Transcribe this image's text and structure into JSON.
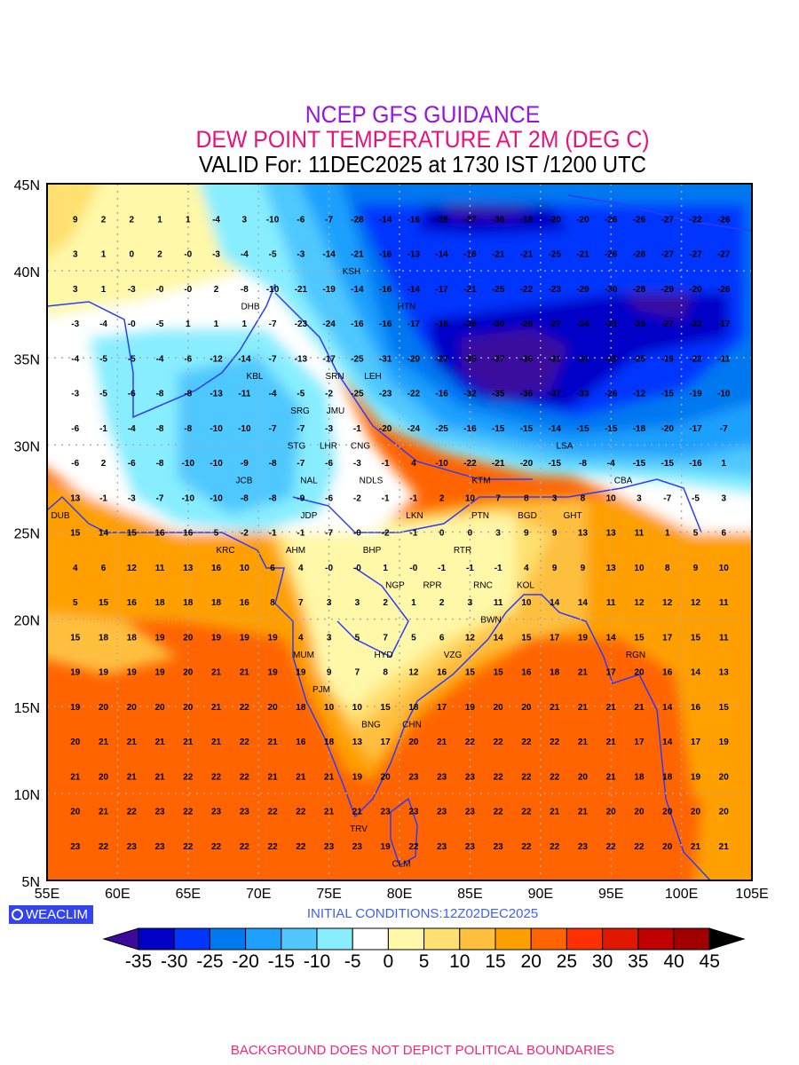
{
  "header": {
    "line1": "NCEP GFS GUIDANCE",
    "line2": "DEW POINT TEMPERATURE AT 2M (DEG C)",
    "line3": "VALID For: 11DEC2025 at 1730 IST /1200 UTC"
  },
  "axes": {
    "lat_labels": [
      "45N",
      "40N",
      "35N",
      "30N",
      "25N",
      "20N",
      "15N",
      "10N",
      "5N"
    ],
    "lon_labels": [
      "55E",
      "60E",
      "65E",
      "70E",
      "75E",
      "80E",
      "85E",
      "90E",
      "95E",
      "100E",
      "105E"
    ]
  },
  "brand": {
    "label": "WEACLIM"
  },
  "initial_conditions": "INITIAL CONDITIONS:12Z02DEC2025",
  "footer": "BACKGROUND DOES NOT DEPICT POLITICAL BOUNDARIES",
  "legend": {
    "labels": [
      "-35",
      "-30",
      "-25",
      "-20",
      "-15",
      "-10",
      "-5",
      "0",
      "5",
      "10",
      "15",
      "20",
      "25",
      "30",
      "35",
      "40",
      "45"
    ],
    "colors": [
      "#0000c8",
      "#0036ff",
      "#0078f0",
      "#1ea0ff",
      "#50c8ff",
      "#88eeff",
      "#ffffff",
      "#fff8a8",
      "#ffe070",
      "#ffc040",
      "#ffa000",
      "#ff6400",
      "#ff3000",
      "#e01800",
      "#c00000",
      "#a00000"
    ],
    "under_color": "#3a0a9e",
    "over_color": "#000000"
  },
  "stations": [
    "DHB",
    "KSH",
    "HTN",
    "KBL",
    "LEH",
    "SRN",
    "JMU",
    "SRG",
    "LHR",
    "CNG",
    "STG",
    "NAL",
    "NDLS",
    "JCB",
    "JDP",
    "LKN",
    "KTM",
    "BGD",
    "GHT",
    "CBA",
    "LSA",
    "PTN",
    "RTR",
    "RNC",
    "KOL",
    "DUB",
    "KRC",
    "AHM",
    "BHP",
    "NGP",
    "RPR",
    "BWN",
    "MUM",
    "HYD",
    "VZG",
    "PJM",
    "BNG",
    "CHN",
    "TRV",
    "CLM",
    "RGN"
  ],
  "value_grid": {
    "lats": [
      43,
      41,
      39,
      37,
      35,
      33,
      31,
      29,
      27,
      25,
      23,
      21,
      19,
      17,
      15,
      13,
      11,
      9,
      7
    ],
    "lons": [
      57,
      59,
      61,
      63,
      65,
      67,
      69,
      71,
      73,
      75,
      77,
      79,
      81,
      83,
      85,
      87,
      89,
      91,
      93,
      95,
      97,
      99,
      101,
      103
    ],
    "rows": [
      [
        "9",
        "2",
        "2",
        "1",
        "1",
        "-4",
        "3",
        "-10",
        "-6",
        "-7",
        "-28",
        "-14",
        "-16",
        "-28",
        "-27",
        "-36",
        "-18",
        "-20",
        "-20",
        "-26",
        "-26",
        "-27",
        "-22",
        "-26"
      ],
      [
        "3",
        "1",
        "0",
        "2",
        "-0",
        "-3",
        "-4",
        "-5",
        "-3",
        "-14",
        "-21",
        "-16",
        "-13",
        "-14",
        "-18",
        "-21",
        "-21",
        "-25",
        "-21",
        "-26",
        "-28",
        "-27",
        "-27",
        "-27"
      ],
      [
        "3",
        "1",
        "-3",
        "-0",
        "-0",
        "2",
        "-8",
        "-10",
        "-21",
        "-19",
        "-14",
        "-16",
        "-14",
        "-17",
        "-21",
        "-25",
        "-22",
        "-23",
        "-29",
        "-30",
        "-28",
        "-29",
        "-20",
        "-26"
      ],
      [
        "-3",
        "-4",
        "-0",
        "-5",
        "1",
        "1",
        "1",
        "-7",
        "-23",
        "-24",
        "-16",
        "-16",
        "-17",
        "-18",
        "-26",
        "-30",
        "-28",
        "-27",
        "-24",
        "-21",
        "-25",
        "-27",
        "-22",
        "-17"
      ],
      [
        "-4",
        "-5",
        "-5",
        "-4",
        "-6",
        "-12",
        "-14",
        "-7",
        "-13",
        "-17",
        "-25",
        "-31",
        "-29",
        "-27",
        "-35",
        "-37",
        "-36",
        "-31",
        "-31",
        "-28",
        "-25",
        "-19",
        "-22",
        "-11"
      ],
      [
        "-3",
        "-5",
        "-6",
        "-8",
        "-8",
        "-13",
        "-11",
        "-4",
        "-5",
        "-2",
        "-25",
        "-23",
        "-22",
        "-16",
        "-32",
        "-35",
        "-36",
        "-37",
        "-33",
        "-26",
        "-12",
        "-15",
        "-19",
        "-10"
      ],
      [
        "-6",
        "-1",
        "-4",
        "-8",
        "-8",
        "-10",
        "-10",
        "-7",
        "-7",
        "-3",
        "-1",
        "-20",
        "-24",
        "-25",
        "-16",
        "-15",
        "-15",
        "-14",
        "-15",
        "-15",
        "-18",
        "-20",
        "-17",
        "-7"
      ],
      [
        "-6",
        "2",
        "-6",
        "-8",
        "-10",
        "-10",
        "-9",
        "-8",
        "-7",
        "-6",
        "-3",
        "-1",
        "4",
        "-10",
        "-22",
        "-21",
        "-20",
        "-15",
        "-8",
        "-4",
        "-15",
        "-15",
        "-16",
        "1"
      ],
      [
        "13",
        "-1",
        "-3",
        "-7",
        "-10",
        "-10",
        "-8",
        "-8",
        "-9",
        "-6",
        "-2",
        "-1",
        "-1",
        "2",
        "10",
        "7",
        "8",
        "3",
        "8",
        "10",
        "3",
        "-7",
        "-5",
        "3"
      ],
      [
        "15",
        "14",
        "15",
        "16",
        "16",
        "5",
        "-2",
        "-1",
        "-1",
        "-7",
        "-0",
        "-2",
        "-1",
        "0",
        "0",
        "3",
        "9",
        "9",
        "13",
        "13",
        "11",
        "1",
        "5",
        "6"
      ],
      [
        "4",
        "6",
        "12",
        "11",
        "13",
        "16",
        "10",
        "6",
        "4",
        "-0",
        "-0",
        "1",
        "-0",
        "-1",
        "-1",
        "-1",
        "4",
        "9",
        "9",
        "13",
        "10",
        "8",
        "9",
        "10"
      ],
      [
        "5",
        "15",
        "16",
        "18",
        "18",
        "18",
        "16",
        "8",
        "7",
        "3",
        "3",
        "2",
        "1",
        "2",
        "3",
        "11",
        "10",
        "14",
        "14",
        "11",
        "12",
        "12",
        "12",
        "11"
      ],
      [
        "15",
        "18",
        "18",
        "19",
        "20",
        "19",
        "19",
        "19",
        "4",
        "3",
        "5",
        "7",
        "5",
        "6",
        "12",
        "14",
        "15",
        "17",
        "19",
        "14",
        "15",
        "17",
        "15",
        "11"
      ],
      [
        "19",
        "19",
        "19",
        "19",
        "20",
        "21",
        "21",
        "19",
        "19",
        "9",
        "7",
        "8",
        "12",
        "16",
        "15",
        "15",
        "16",
        "18",
        "21",
        "17",
        "20",
        "16",
        "14",
        "13"
      ],
      [
        "19",
        "20",
        "20",
        "20",
        "20",
        "21",
        "22",
        "20",
        "18",
        "10",
        "10",
        "15",
        "18",
        "17",
        "19",
        "20",
        "20",
        "21",
        "21",
        "21",
        "21",
        "14",
        "16",
        "15"
      ],
      [
        "20",
        "21",
        "21",
        "21",
        "21",
        "21",
        "22",
        "21",
        "16",
        "18",
        "13",
        "17",
        "20",
        "21",
        "22",
        "22",
        "22",
        "22",
        "21",
        "21",
        "17",
        "14",
        "17",
        "19"
      ],
      [
        "21",
        "20",
        "21",
        "21",
        "22",
        "22",
        "22",
        "21",
        "21",
        "21",
        "19",
        "20",
        "23",
        "23",
        "23",
        "22",
        "22",
        "22",
        "20",
        "21",
        "18",
        "18",
        "19",
        "20"
      ],
      [
        "20",
        "21",
        "22",
        "23",
        "22",
        "23",
        "23",
        "22",
        "22",
        "21",
        "21",
        "23",
        "23",
        "23",
        "23",
        "22",
        "22",
        "21",
        "21",
        "20",
        "20",
        "20",
        "20",
        "20"
      ],
      [
        "23",
        "22",
        "23",
        "23",
        "22",
        "22",
        "22",
        "22",
        "22",
        "23",
        "23",
        "19",
        "22",
        "23",
        "23",
        "23",
        "22",
        "22",
        "23",
        "22",
        "22",
        "20",
        "21",
        "21"
      ]
    ]
  }
}
